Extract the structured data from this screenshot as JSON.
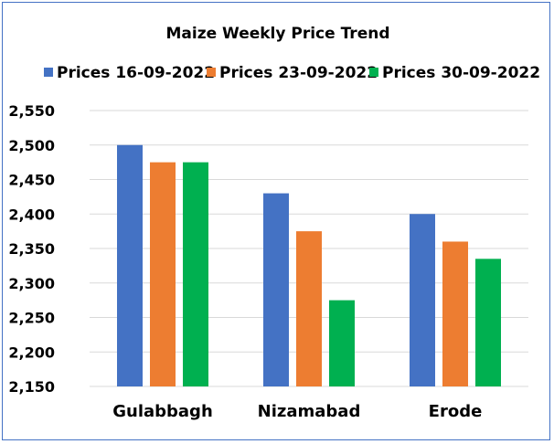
{
  "chart_data": {
    "type": "bar",
    "title": "Maize Weekly Price Trend",
    "categories": [
      "Gulabbagh",
      "Nizamabad",
      "Erode"
    ],
    "series": [
      {
        "name": "Prices 16-09-2022",
        "color": "#4472c4",
        "values": [
          2500,
          2430,
          2400
        ]
      },
      {
        "name": "Prices 23-09-2022",
        "color": "#ed7d31",
        "values": [
          2475,
          2375,
          2360
        ]
      },
      {
        "name": "Prices 30-09-2022",
        "color": "#00b050",
        "values": [
          2475,
          2275,
          2335
        ]
      }
    ],
    "ylim": [
      2150,
      2550
    ],
    "yticks": [
      "2,150",
      "2,200",
      "2,250",
      "2,300",
      "2,350",
      "2,400",
      "2,450",
      "2,500",
      "2,550"
    ],
    "grid": true,
    "legend_position": "top"
  }
}
